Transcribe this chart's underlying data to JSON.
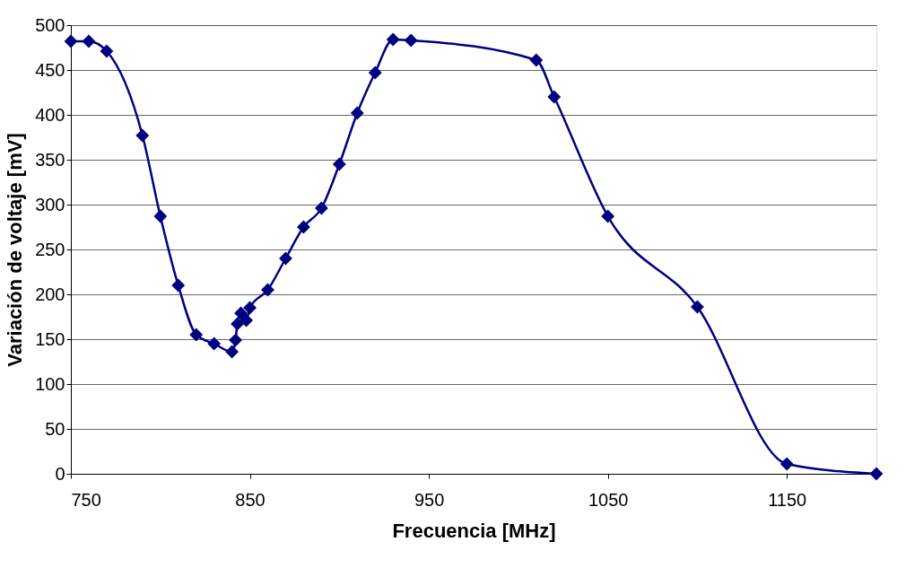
{
  "chart_data": {
    "type": "line",
    "xlabel": "Frecuencia [MHz]",
    "ylabel": "Variación de voltaje [mV]",
    "x": [
      750,
      760,
      770,
      790,
      800,
      810,
      820,
      830,
      840,
      842,
      843,
      845,
      848,
      850,
      860,
      870,
      880,
      890,
      900,
      910,
      920,
      930,
      940,
      1010,
      1020,
      1050,
      1100,
      1150,
      1200
    ],
    "series": [
      {
        "color": "#000080",
        "values": [
          482,
          482,
          471,
          377,
          287,
          210,
          155,
          145,
          136,
          149,
          167,
          179,
          171,
          185,
          205,
          240,
          275,
          296,
          345,
          402,
          447,
          484,
          483,
          461,
          420,
          287,
          186,
          11,
          0
        ]
      }
    ],
    "xlim": [
      750,
      1200
    ],
    "xticks": [
      750,
      850,
      950,
      1050,
      1150
    ],
    "ylim": [
      0,
      500
    ],
    "yticks": [
      0,
      50,
      100,
      150,
      200,
      250,
      300,
      350,
      400,
      450,
      500
    ],
    "grid": "y",
    "marker": "diamond",
    "line_style": "solid"
  }
}
